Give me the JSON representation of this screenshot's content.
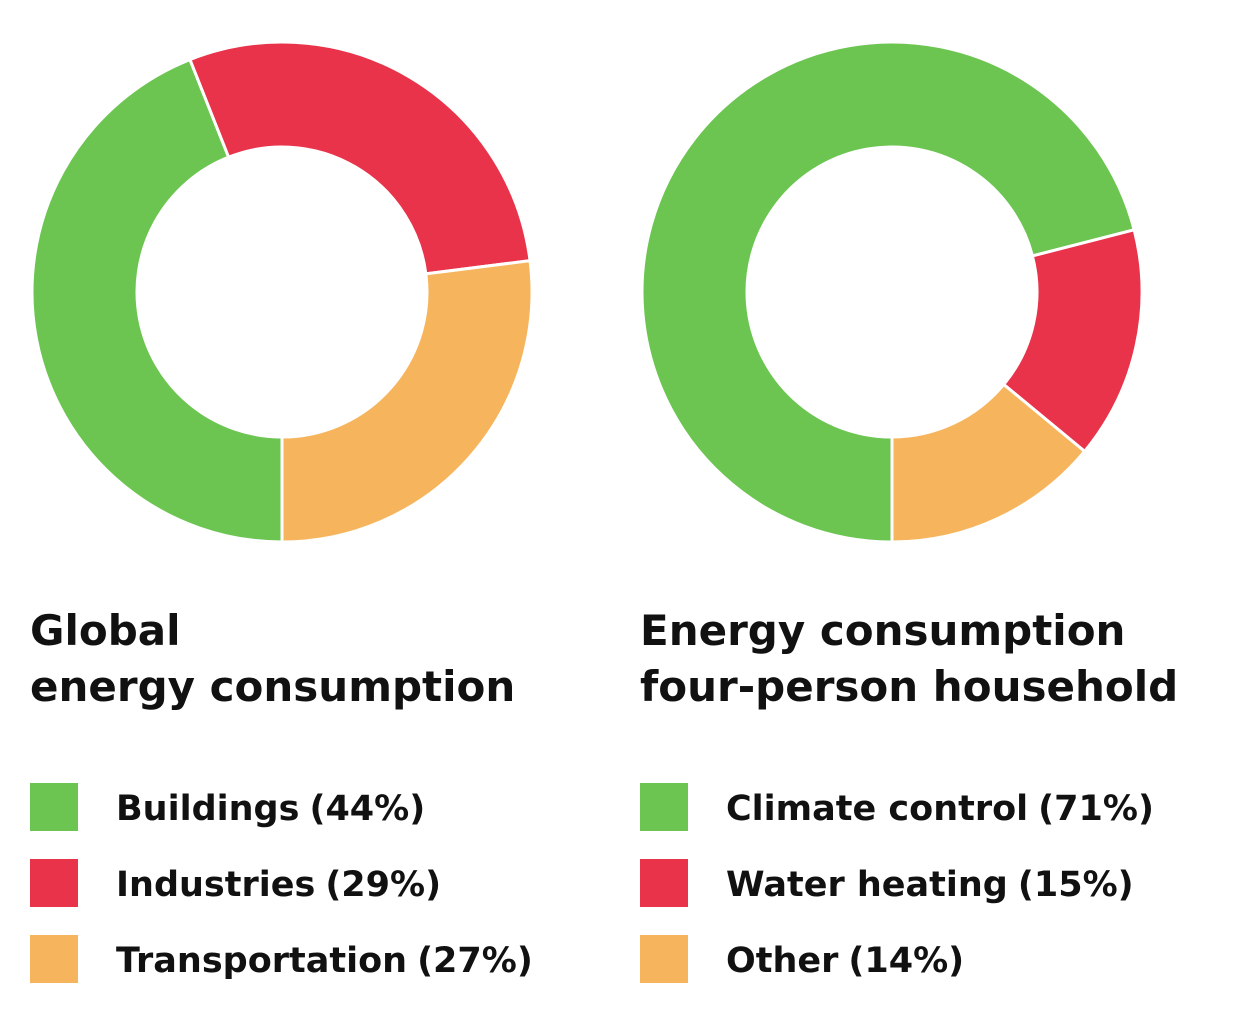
{
  "chart_data": [
    {
      "type": "pie",
      "title": [
        "Global",
        "energy consumption"
      ],
      "categories": [
        "Buildings",
        "Industries",
        "Transportation"
      ],
      "values": [
        44,
        29,
        27
      ],
      "value_labels": [
        "(44%)",
        "(29%)",
        "(27%)"
      ],
      "colors": [
        "#6cc551",
        "#e8334a",
        "#f6b55c"
      ]
    },
    {
      "type": "pie",
      "title": [
        "Energy consumption",
        "four-person household"
      ],
      "categories": [
        "Climate control",
        "Water heating",
        "Other"
      ],
      "values": [
        71,
        15,
        14
      ],
      "value_labels": [
        "(71%)",
        "(15%)",
        "(14%)"
      ],
      "colors": [
        "#6cc551",
        "#e8334a",
        "#f6b55c"
      ]
    }
  ]
}
